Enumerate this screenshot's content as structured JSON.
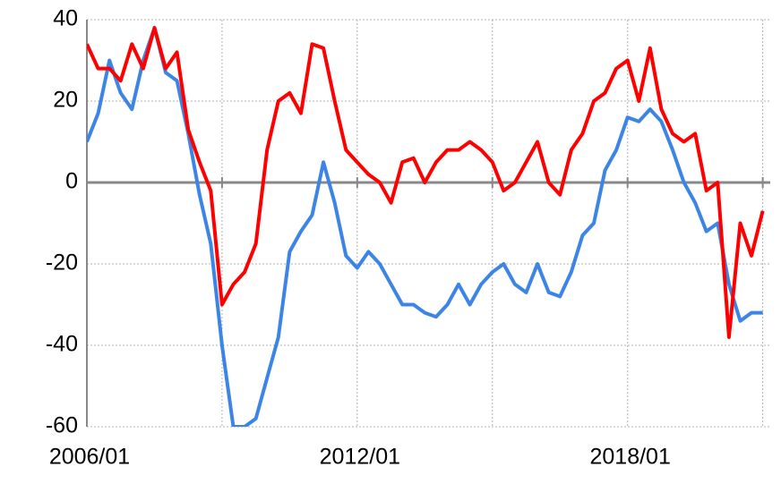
{
  "chart_data": {
    "type": "line",
    "x": [
      "2006/01",
      "2006/04",
      "2006/07",
      "2006/10",
      "2007/01",
      "2007/04",
      "2007/07",
      "2007/10",
      "2008/01",
      "2008/04",
      "2008/07",
      "2008/10",
      "2009/01",
      "2009/04",
      "2009/07",
      "2009/10",
      "2010/01",
      "2010/04",
      "2010/07",
      "2010/10",
      "2011/01",
      "2011/04",
      "2011/07",
      "2011/10",
      "2012/01",
      "2012/04",
      "2012/07",
      "2012/10",
      "2013/01",
      "2013/04",
      "2013/07",
      "2013/10",
      "2014/01",
      "2014/04",
      "2014/07",
      "2014/10",
      "2015/01",
      "2015/04",
      "2015/07",
      "2015/10",
      "2016/01",
      "2016/04",
      "2016/07",
      "2016/10",
      "2017/01",
      "2017/04",
      "2017/07",
      "2017/10",
      "2018/01",
      "2018/04",
      "2018/07",
      "2018/10",
      "2019/01",
      "2019/04",
      "2019/07",
      "2019/10",
      "2020/01",
      "2020/04",
      "2020/07",
      "2020/10",
      "2021/01"
    ],
    "series": [
      {
        "color": "#3c85e6",
        "values": [
          10,
          17,
          30,
          22,
          18,
          30,
          38,
          27,
          25,
          12,
          -3,
          -15,
          -40,
          -60,
          -60,
          -58,
          -48,
          -38,
          -17,
          -12,
          -8,
          5,
          -5,
          -18,
          -21,
          -17,
          -20,
          -25,
          -30,
          -30,
          -32,
          -33,
          -30,
          -25,
          -30,
          -25,
          -22,
          -20,
          -25,
          -27,
          -20,
          -27,
          -28,
          -22,
          -13,
          -10,
          3,
          8,
          16,
          15,
          18,
          15,
          8,
          0,
          -5,
          -12,
          -10,
          -25,
          -34,
          -32,
          -32
        ]
      },
      {
        "color": "#ff0000",
        "values": [
          34,
          28,
          28,
          25,
          34,
          28,
          38,
          28,
          32,
          13,
          5,
          -2,
          -30,
          -25,
          -22,
          -15,
          8,
          20,
          22,
          17,
          34,
          33,
          20,
          8,
          5,
          2,
          0,
          -5,
          5,
          6,
          0,
          5,
          8,
          8,
          10,
          8,
          5,
          -2,
          0,
          5,
          10,
          0,
          -3,
          8,
          12,
          20,
          22,
          28,
          30,
          20,
          33,
          18,
          12,
          10,
          12,
          -2,
          0,
          -38,
          -10,
          -18,
          -7
        ]
      }
    ],
    "xlim": [
      "2006/01",
      "2021/03"
    ],
    "xticks": [
      "2006/01",
      "2012/01",
      "2018/01"
    ],
    "ylim": [
      -60,
      40
    ],
    "yticks": [
      -60,
      -40,
      -20,
      0,
      20,
      40
    ],
    "grid": true
  }
}
